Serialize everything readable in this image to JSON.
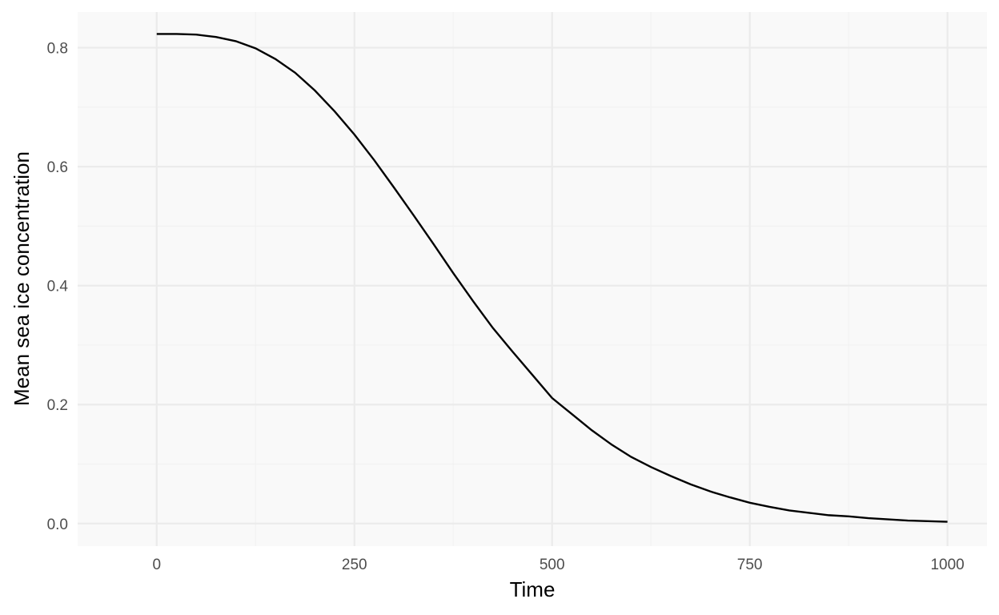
{
  "chart_data": {
    "type": "line",
    "title": "",
    "xlabel": "Time",
    "ylabel": "Mean sea ice concentration",
    "xlim": [
      -100,
      1050
    ],
    "ylim": [
      -0.038,
      0.86
    ],
    "x_ticks": [
      0,
      250,
      500,
      750,
      1000
    ],
    "x_tick_labels": [
      "0",
      "250",
      "500",
      "750",
      "1000"
    ],
    "y_ticks": [
      0.0,
      0.2,
      0.4,
      0.6,
      0.8
    ],
    "y_tick_labels": [
      "0.0",
      "0.2",
      "0.4",
      "0.6",
      "0.8"
    ],
    "grid": true,
    "legend": "none",
    "series": [
      {
        "color": "#000000",
        "x": [
          0,
          25,
          50,
          75,
          100,
          125,
          150,
          175,
          200,
          225,
          250,
          275,
          300,
          325,
          350,
          375,
          400,
          425,
          450,
          475,
          500,
          525,
          550,
          575,
          600,
          625,
          650,
          675,
          700,
          725,
          750,
          775,
          800,
          825,
          850,
          875,
          900,
          925,
          950,
          975,
          1000
        ],
        "y": [
          0.823,
          0.823,
          0.822,
          0.818,
          0.811,
          0.799,
          0.781,
          0.758,
          0.728,
          0.693,
          0.654,
          0.611,
          0.565,
          0.518,
          0.47,
          0.421,
          0.374,
          0.329,
          0.289,
          0.25,
          0.211,
          0.184,
          0.157,
          0.133,
          0.112,
          0.095,
          0.08,
          0.066,
          0.054,
          0.044,
          0.035,
          0.028,
          0.022,
          0.018,
          0.014,
          0.012,
          0.009,
          0.007,
          0.005,
          0.004,
          0.003
        ]
      }
    ]
  },
  "colors": {
    "panel_background": "#f9f9f9",
    "grid_major": "#ebebeb",
    "grid_minor": "#f2f2f2",
    "line": "#000000"
  }
}
